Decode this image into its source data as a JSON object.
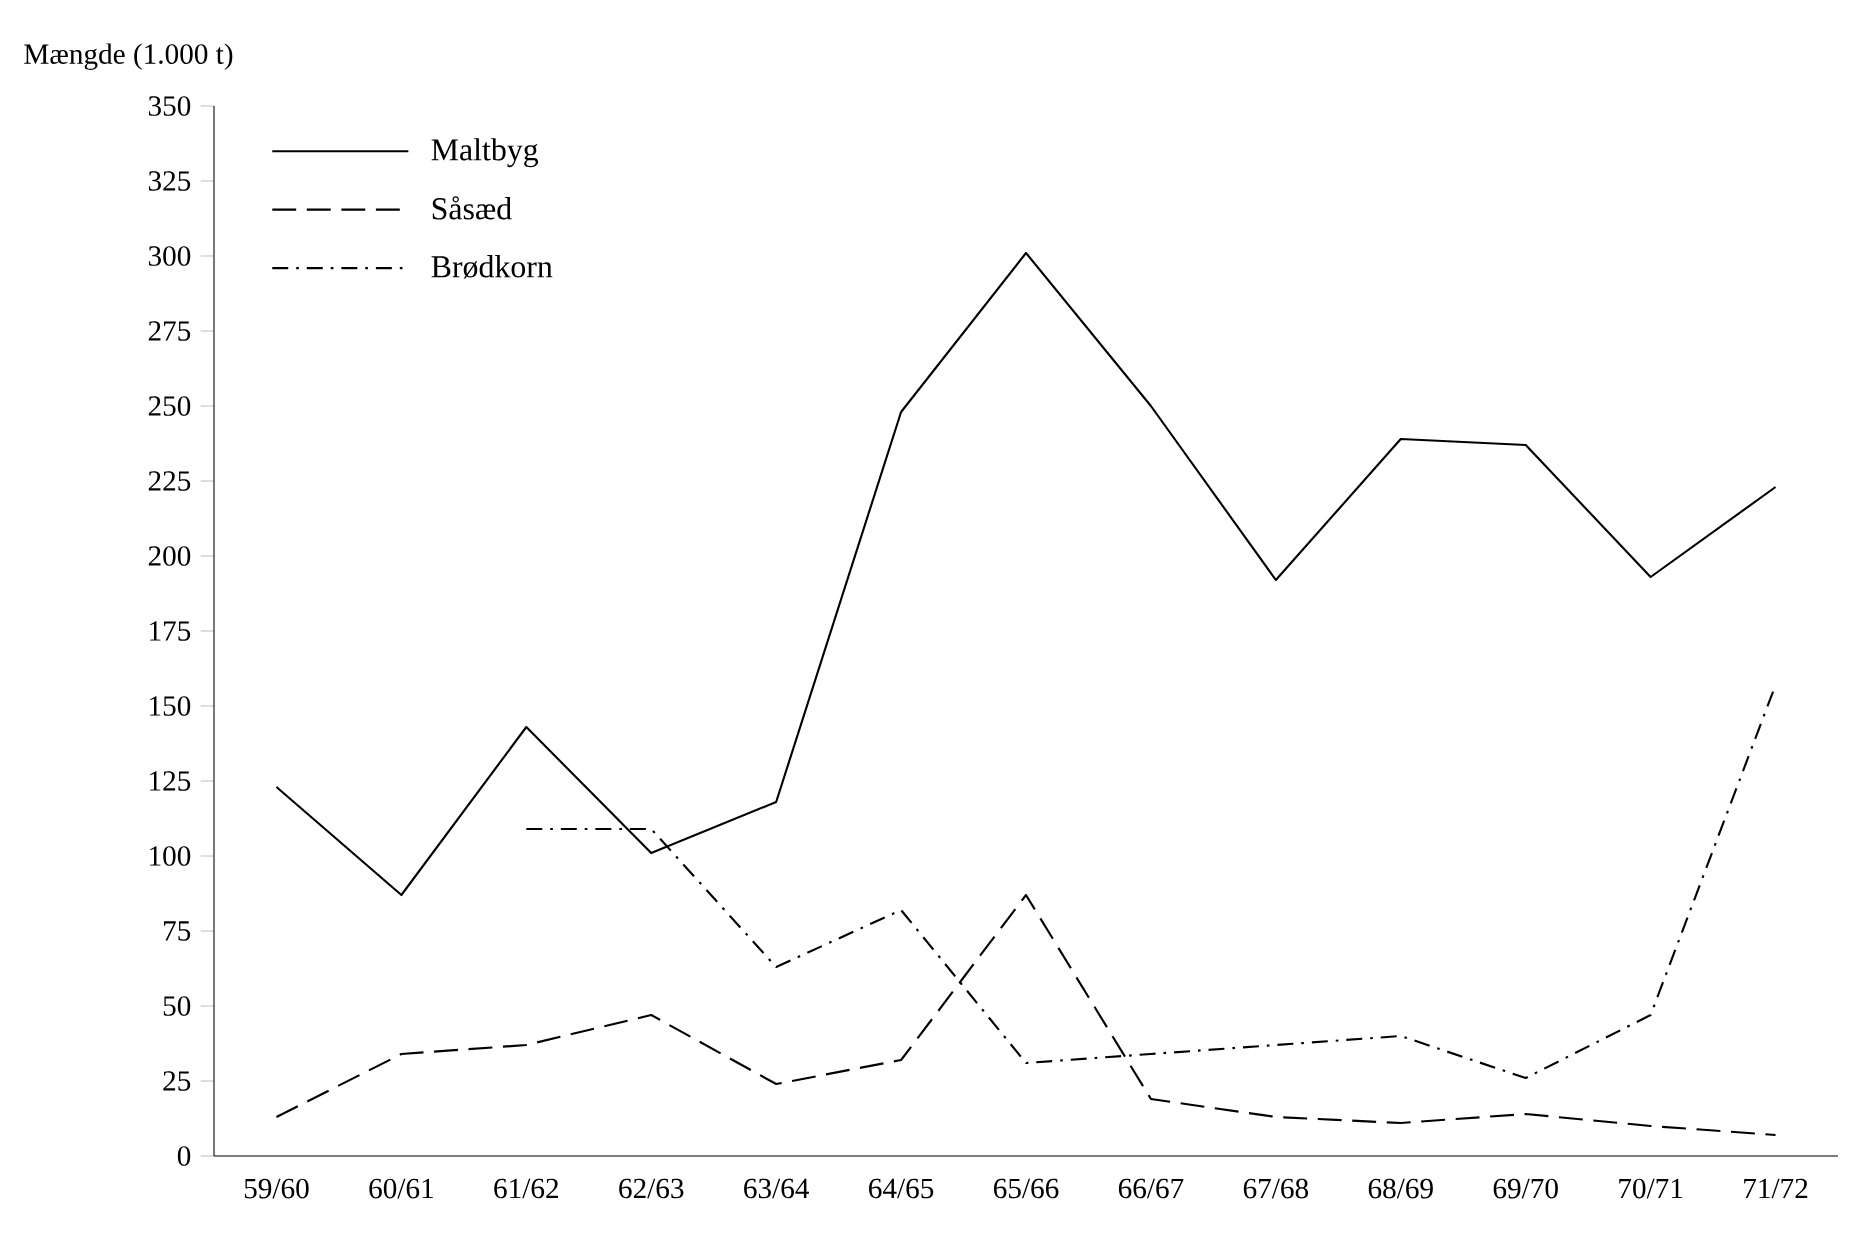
{
  "chart_data": {
    "type": "line",
    "ylabel": "Mængde (1.000 t)",
    "categories": [
      "59/60",
      "60/61",
      "61/62",
      "62/63",
      "63/64",
      "64/65",
      "65/66",
      "66/67",
      "67/68",
      "68/69",
      "69/70",
      "70/71",
      "71/72"
    ],
    "series": [
      {
        "name": "Maltbyg",
        "color": "#000000",
        "line_style": "solid",
        "values": [
          123,
          87,
          143,
          101,
          118,
          248,
          301,
          250,
          192,
          239,
          237,
          193,
          223
        ]
      },
      {
        "name": "Såsæd",
        "color": "#000000",
        "line_style": "dashed",
        "values": [
          13,
          34,
          37,
          47,
          24,
          32,
          87,
          19,
          13,
          11,
          14,
          10,
          7
        ]
      },
      {
        "name": "Brødkorn",
        "color": "#000000",
        "line_style": "dashdot",
        "values": [
          null,
          null,
          109,
          109,
          63,
          82,
          31,
          34,
          37,
          40,
          26,
          47,
          157
        ]
      }
    ],
    "ylim": [
      0,
      350
    ],
    "yticks": [
      0,
      25,
      50,
      75,
      100,
      125,
      150,
      175,
      200,
      225,
      250,
      275,
      300,
      325,
      350
    ],
    "grid": false,
    "legend": "top left",
    "marker": "none"
  }
}
